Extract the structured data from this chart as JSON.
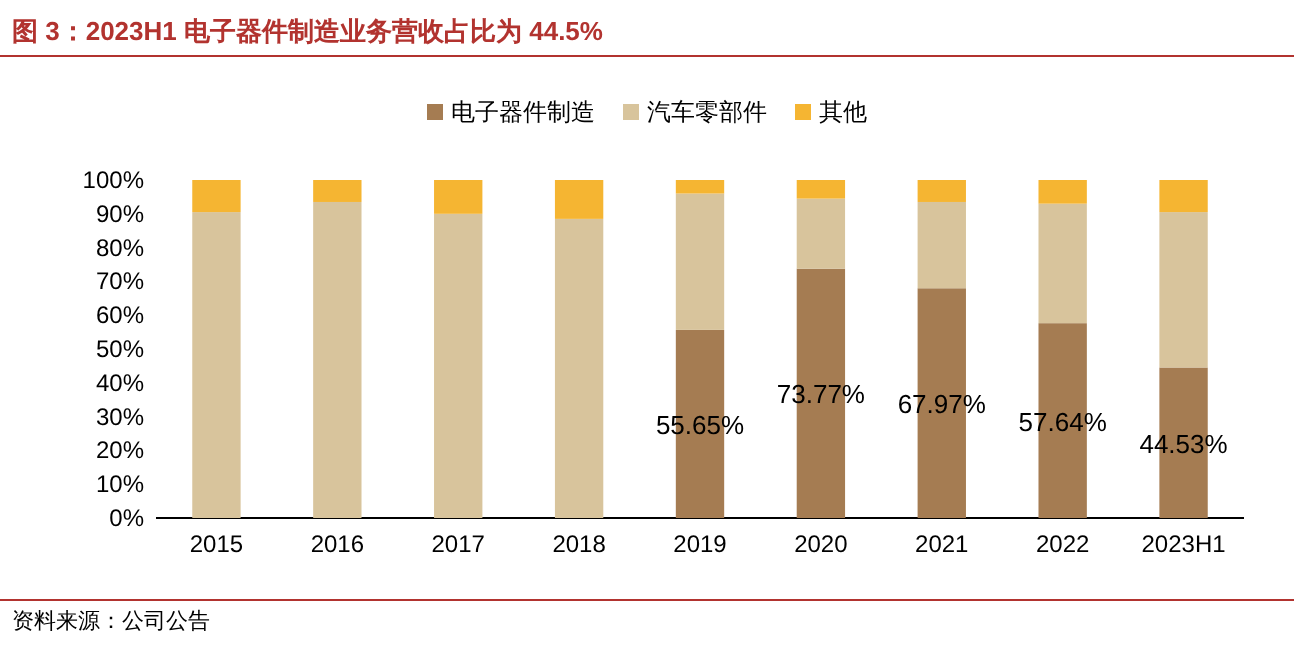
{
  "chart_data": {
    "type": "bar",
    "stacked": true,
    "title": "图 3：2023H1 电子器件制造业务营收占比为 44.5%",
    "annotations": [
      "资料来源：公司公告"
    ],
    "legend": "top",
    "categories": [
      "2015",
      "2016",
      "2017",
      "2018",
      "2019",
      "2020",
      "2021",
      "2022",
      "2023H1"
    ],
    "series": [
      {
        "name": "电子器件制造",
        "color": "#a57c52",
        "values": [
          0,
          0,
          0,
          0,
          55.65,
          73.77,
          67.97,
          57.64,
          44.53
        ],
        "value_labels": [
          null,
          null,
          null,
          null,
          "55.65%",
          "73.77%",
          "67.97%",
          "57.64%",
          "44.53%"
        ]
      },
      {
        "name": "汽车零部件",
        "color": "#d8c49c",
        "values": [
          90.5,
          93.5,
          90,
          88.5,
          40.35,
          20.73,
          25.53,
          35.36,
          45.97
        ]
      },
      {
        "name": "其他",
        "color": "#f5b532",
        "values": [
          9.5,
          6.5,
          10,
          11.5,
          4,
          5.5,
          6.5,
          7,
          9.5
        ]
      }
    ],
    "ylim": [
      0,
      100
    ],
    "yticks": [
      {
        "value": 0,
        "label": "0%"
      },
      {
        "value": 10,
        "label": "10%"
      },
      {
        "value": 20,
        "label": "20%"
      },
      {
        "value": 30,
        "label": "30%"
      },
      {
        "value": 40,
        "label": "40%"
      },
      {
        "value": 50,
        "label": "50%"
      },
      {
        "value": 60,
        "label": "60%"
      },
      {
        "value": 70,
        "label": "70%"
      },
      {
        "value": 80,
        "label": "80%"
      },
      {
        "value": 90,
        "label": "90%"
      },
      {
        "value": 100,
        "label": "100%"
      }
    ]
  }
}
